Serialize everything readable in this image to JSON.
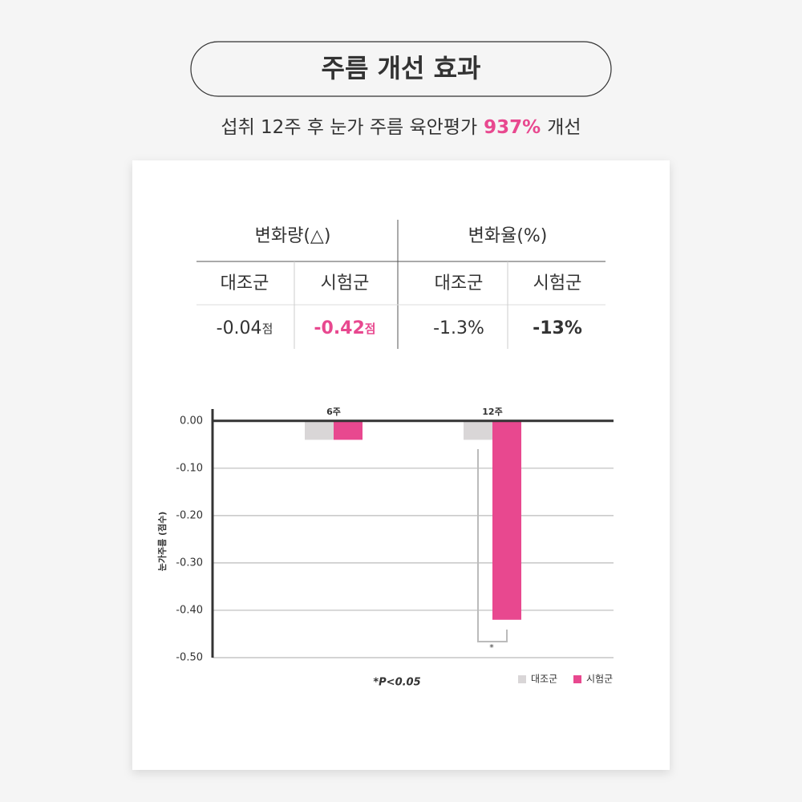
{
  "header": {
    "title": "주름 개선 효과",
    "subtitle": {
      "before": "섭취 12주 후 눈가 주름 육안평가",
      "highlight": "937%",
      "after": "개선"
    }
  },
  "table": {
    "groups": [
      "변화량(△)",
      "변화율(%)"
    ],
    "columns": [
      "대조군",
      "시험군",
      "대조군",
      "시험군"
    ],
    "cells": [
      {
        "text": "-0.04",
        "unit": "점"
      },
      {
        "text": "-0.42",
        "unit": "점"
      },
      {
        "text": "-1.3%"
      },
      {
        "text": "-13%"
      }
    ]
  },
  "chart_data": {
    "type": "bar",
    "y_label": "눈가주름 (점수)",
    "categories": [
      "6주",
      "12주"
    ],
    "series": [
      {
        "name": "대조군",
        "color": "#d9d6d7",
        "values": [
          -0.04,
          -0.04
        ]
      },
      {
        "name": "시험군",
        "color": "#e8488f",
        "values": [
          -0.04,
          -0.42
        ]
      }
    ],
    "ylim": [
      -0.5,
      0.025
    ],
    "yticks": [
      {
        "value": 0,
        "label": "0.00"
      },
      {
        "value": -0.1,
        "label": "-0.10"
      },
      {
        "value": -0.2,
        "label": "-0.20"
      },
      {
        "value": -0.3,
        "label": "-0.30"
      },
      {
        "value": -0.4,
        "label": "-0.40"
      },
      {
        "value": -0.5,
        "label": "-0.50"
      }
    ],
    "grid": true,
    "legend": "bottom-right",
    "significance_mark": "*",
    "footnote": "*P<0.05"
  }
}
